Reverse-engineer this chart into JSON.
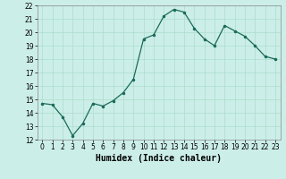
{
  "x": [
    0,
    1,
    2,
    3,
    4,
    5,
    6,
    7,
    8,
    9,
    10,
    11,
    12,
    13,
    14,
    15,
    16,
    17,
    18,
    19,
    20,
    21,
    22,
    23
  ],
  "y": [
    14.7,
    14.6,
    13.7,
    12.3,
    13.2,
    14.7,
    14.5,
    14.9,
    15.5,
    16.5,
    19.5,
    19.8,
    21.2,
    21.7,
    21.5,
    20.3,
    19.5,
    19.0,
    20.5,
    20.1,
    19.7,
    19.0,
    18.2,
    18.0
  ],
  "ylim": [
    12,
    22
  ],
  "xlim": [
    -0.5,
    23.5
  ],
  "yticks": [
    12,
    13,
    14,
    15,
    16,
    17,
    18,
    19,
    20,
    21,
    22
  ],
  "xticks": [
    0,
    1,
    2,
    3,
    4,
    5,
    6,
    7,
    8,
    9,
    10,
    11,
    12,
    13,
    14,
    15,
    16,
    17,
    18,
    19,
    20,
    21,
    22,
    23
  ],
  "xlabel": "Humidex (Indice chaleur)",
  "line_color": "#1a6b5a",
  "marker": ".",
  "marker_size": 3,
  "bg_color": "#cceee8",
  "grid_color": "#aaddcc",
  "tick_label_fontsize": 5.5,
  "xlabel_fontsize": 7,
  "title": ""
}
